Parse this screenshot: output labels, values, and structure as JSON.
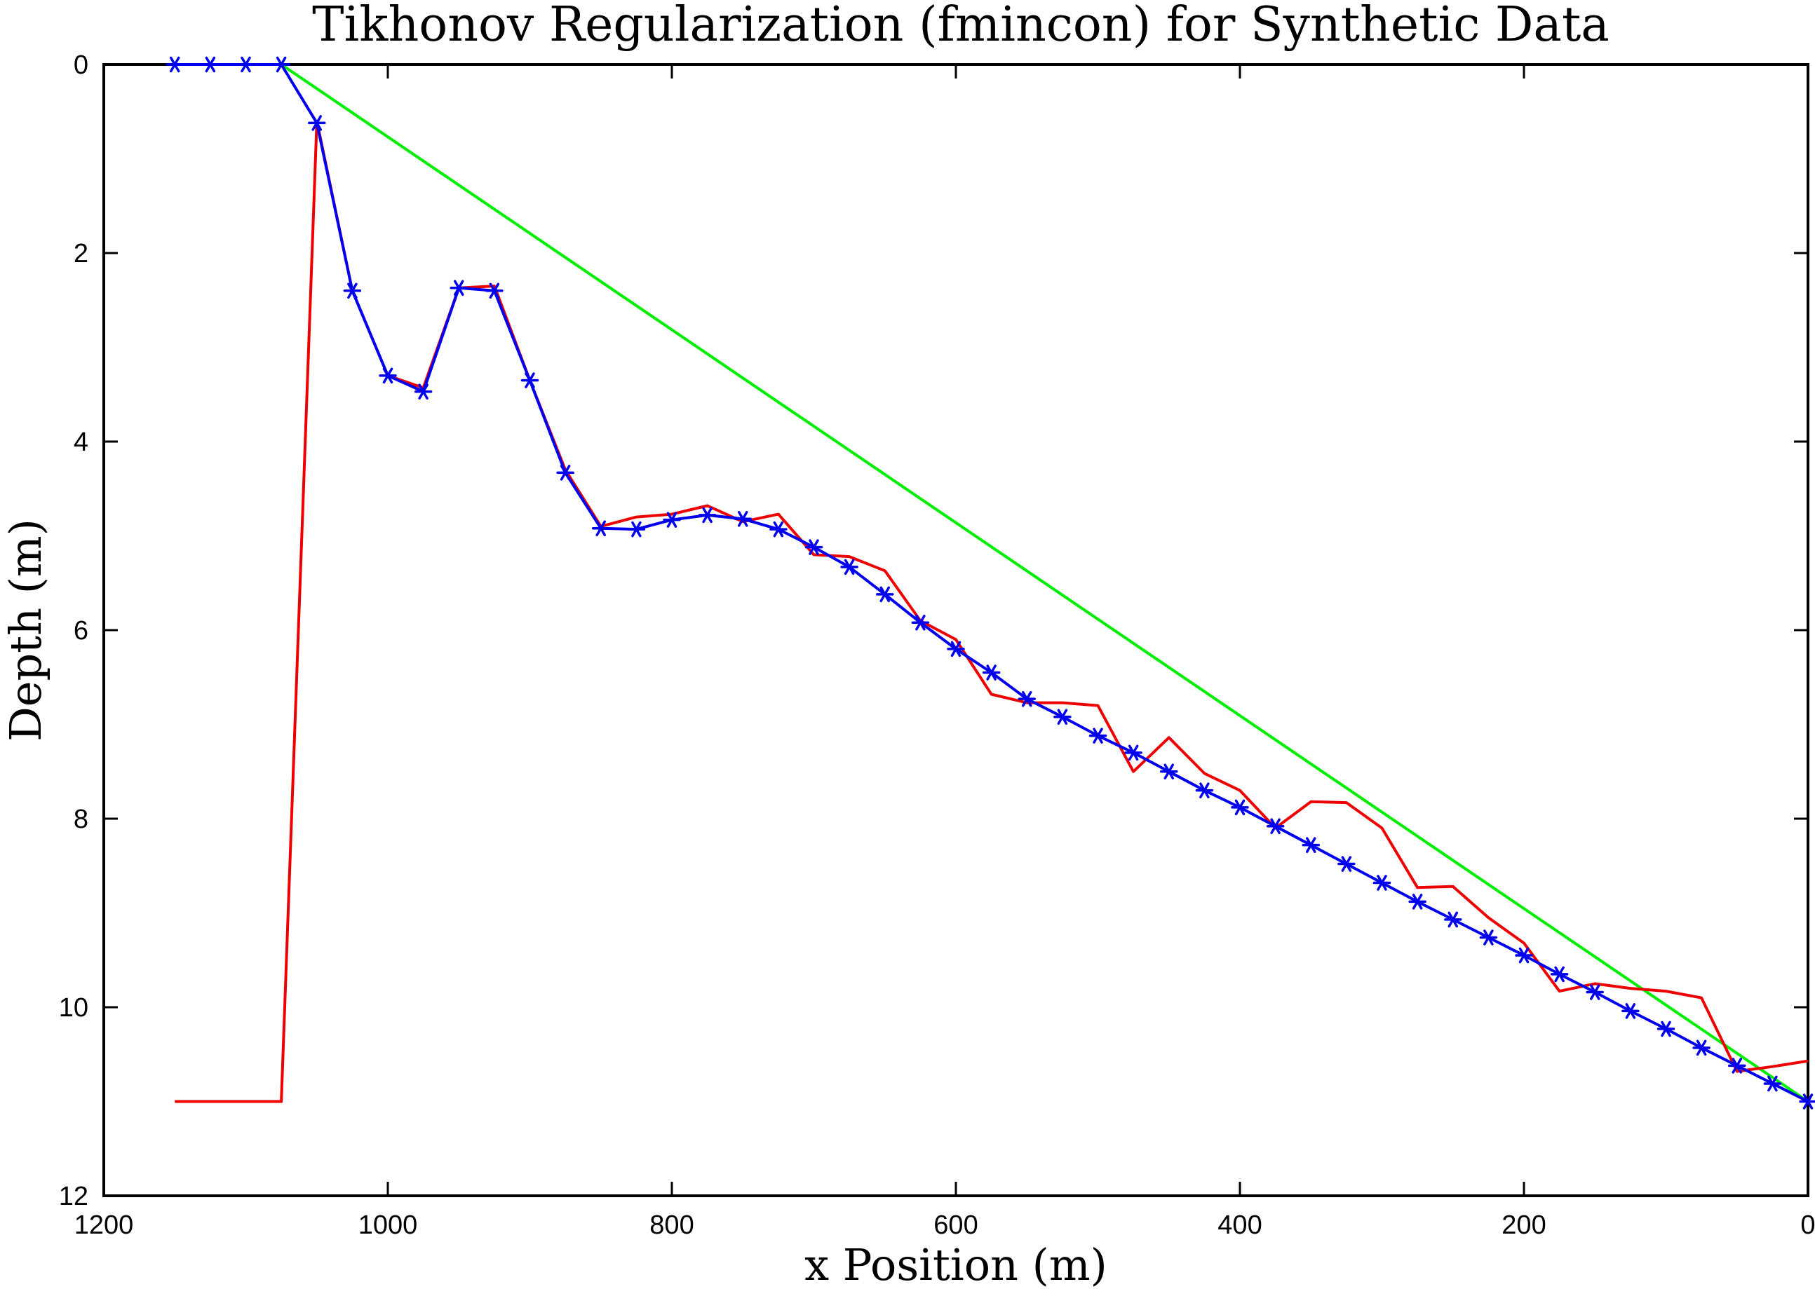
{
  "chart_data": {
    "type": "line",
    "title": "Tikhonov Regularization (fmincon) for Synthetic Data",
    "xlabel": "x Position (m)",
    "ylabel": "Depth (m)",
    "xlim": [
      1200,
      0
    ],
    "ylim": [
      12,
      0
    ],
    "x_reversed": true,
    "y_reversed": true,
    "grid": false,
    "legend": "none",
    "xticks": [
      1200,
      1000,
      800,
      600,
      400,
      200,
      0
    ],
    "yticks": [
      0,
      2,
      4,
      6,
      8,
      10,
      12
    ],
    "series": [
      {
        "color": "#00ee00",
        "marker": "none",
        "x": [
          1150,
          1075,
          0
        ],
        "y": [
          0,
          0,
          11
        ]
      },
      {
        "color": "#ee0000",
        "marker": "none",
        "x": [
          1150,
          1075,
          1050,
          1025,
          1000,
          975,
          950,
          925,
          900,
          875,
          850,
          825,
          800,
          775,
          750,
          725,
          700,
          675,
          650,
          625,
          600,
          575,
          550,
          525,
          500,
          475,
          450,
          425,
          400,
          375,
          350,
          325,
          300,
          275,
          250,
          225,
          200,
          175,
          150,
          125,
          100,
          75,
          50,
          25,
          0
        ],
        "y": [
          11.0,
          11.0,
          0.6,
          2.4,
          3.3,
          3.43,
          2.37,
          2.35,
          3.35,
          4.3,
          4.9,
          4.8,
          4.77,
          4.68,
          4.85,
          4.77,
          5.2,
          5.22,
          5.37,
          5.9,
          6.1,
          6.68,
          6.77,
          6.77,
          6.8,
          7.5,
          7.14,
          7.52,
          7.7,
          8.1,
          7.82,
          7.83,
          8.1,
          8.73,
          8.72,
          9.05,
          9.32,
          9.83,
          9.75,
          9.8,
          9.83,
          9.9,
          10.68,
          10.63,
          10.57
        ]
      },
      {
        "color": "#0000ee",
        "marker": "asterisk",
        "x": [
          1150,
          1125,
          1100,
          1075,
          1050,
          1025,
          1000,
          975,
          950,
          925,
          900,
          875,
          850,
          825,
          800,
          775,
          750,
          725,
          700,
          675,
          650,
          625,
          600,
          575,
          550,
          525,
          500,
          475,
          450,
          425,
          400,
          375,
          350,
          325,
          300,
          275,
          250,
          225,
          200,
          175,
          150,
          125,
          100,
          75,
          50,
          25,
          0
        ],
        "y": [
          0,
          0,
          0,
          0,
          0.62,
          2.4,
          3.3,
          3.47,
          2.37,
          2.4,
          3.35,
          4.33,
          4.92,
          4.93,
          4.83,
          4.78,
          4.82,
          4.93,
          5.12,
          5.33,
          5.62,
          5.92,
          6.2,
          6.45,
          6.73,
          6.92,
          7.12,
          7.3,
          7.5,
          7.7,
          7.88,
          8.08,
          8.28,
          8.48,
          8.68,
          8.88,
          9.07,
          9.26,
          9.45,
          9.65,
          9.84,
          10.04,
          10.23,
          10.43,
          10.62,
          10.81,
          11.0
        ]
      }
    ]
  }
}
